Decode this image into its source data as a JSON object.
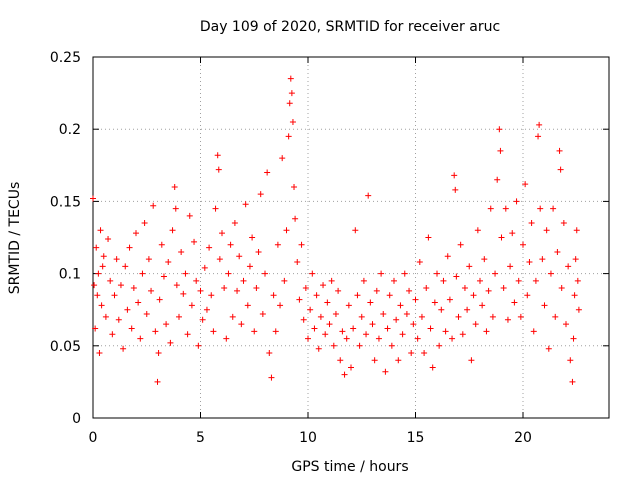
{
  "chart_data": {
    "type": "scatter",
    "title": "Day 109 of 2020, SRMTID for receiver aruc",
    "xlabel": "GPS time / hours",
    "ylabel": "SRMTID / TECUs",
    "xlim": [
      0,
      24
    ],
    "ylim": [
      0,
      0.25
    ],
    "xticks": [
      0,
      5,
      10,
      15,
      20
    ],
    "xtick_labels": [
      "0",
      "5",
      "10",
      "15",
      "20"
    ],
    "yticks": [
      0,
      0.05,
      0.1,
      0.15,
      0.2,
      0.25
    ],
    "ytick_labels": [
      "0",
      "0.05",
      "0.1",
      "0.15",
      "0.2",
      "0.25"
    ],
    "grid": true,
    "marker": "+",
    "color": "#ff0000",
    "series": [
      {
        "name": "SRMTID",
        "points": [
          [
            0.0,
            0.152
          ],
          [
            0.05,
            0.092
          ],
          [
            0.1,
            0.062
          ],
          [
            0.15,
            0.118
          ],
          [
            0.2,
            0.085
          ],
          [
            0.25,
            0.1
          ],
          [
            0.3,
            0.045
          ],
          [
            0.35,
            0.13
          ],
          [
            0.4,
            0.078
          ],
          [
            0.45,
            0.105
          ],
          [
            0.5,
            0.112
          ],
          [
            0.6,
            0.07
          ],
          [
            0.7,
            0.124
          ],
          [
            0.8,
            0.095
          ],
          [
            0.9,
            0.058
          ],
          [
            1.0,
            0.085
          ],
          [
            1.1,
            0.11
          ],
          [
            1.2,
            0.068
          ],
          [
            1.3,
            0.092
          ],
          [
            1.4,
            0.048
          ],
          [
            1.5,
            0.105
          ],
          [
            1.6,
            0.075
          ],
          [
            1.7,
            0.118
          ],
          [
            1.8,
            0.062
          ],
          [
            1.9,
            0.09
          ],
          [
            2.0,
            0.128
          ],
          [
            2.1,
            0.08
          ],
          [
            2.2,
            0.055
          ],
          [
            2.3,
            0.1
          ],
          [
            2.4,
            0.135
          ],
          [
            2.5,
            0.072
          ],
          [
            2.6,
            0.11
          ],
          [
            2.7,
            0.088
          ],
          [
            2.8,
            0.147
          ],
          [
            2.9,
            0.06
          ],
          [
            3.0,
            0.025
          ],
          [
            3.05,
            0.045
          ],
          [
            3.1,
            0.082
          ],
          [
            3.2,
            0.12
          ],
          [
            3.3,
            0.098
          ],
          [
            3.4,
            0.065
          ],
          [
            3.5,
            0.108
          ],
          [
            3.6,
            0.052
          ],
          [
            3.7,
            0.13
          ],
          [
            3.8,
            0.16
          ],
          [
            3.85,
            0.145
          ],
          [
            3.9,
            0.092
          ],
          [
            4.0,
            0.07
          ],
          [
            4.1,
            0.115
          ],
          [
            4.2,
            0.086
          ],
          [
            4.3,
            0.1
          ],
          [
            4.4,
            0.058
          ],
          [
            4.5,
            0.14
          ],
          [
            4.6,
            0.078
          ],
          [
            4.7,
            0.122
          ],
          [
            4.8,
            0.095
          ],
          [
            4.9,
            0.05
          ],
          [
            5.0,
            0.088
          ],
          [
            5.1,
            0.068
          ],
          [
            5.2,
            0.104
          ],
          [
            5.3,
            0.075
          ],
          [
            5.4,
            0.118
          ],
          [
            5.5,
            0.085
          ],
          [
            5.6,
            0.06
          ],
          [
            5.7,
            0.145
          ],
          [
            5.8,
            0.182
          ],
          [
            5.85,
            0.172
          ],
          [
            5.9,
            0.11
          ],
          [
            6.0,
            0.128
          ],
          [
            6.1,
            0.09
          ],
          [
            6.2,
            0.055
          ],
          [
            6.3,
            0.1
          ],
          [
            6.4,
            0.12
          ],
          [
            6.5,
            0.07
          ],
          [
            6.6,
            0.135
          ],
          [
            6.7,
            0.088
          ],
          [
            6.8,
            0.112
          ],
          [
            6.9,
            0.065
          ],
          [
            7.0,
            0.095
          ],
          [
            7.1,
            0.148
          ],
          [
            7.2,
            0.078
          ],
          [
            7.3,
            0.105
          ],
          [
            7.4,
            0.125
          ],
          [
            7.5,
            0.06
          ],
          [
            7.6,
            0.09
          ],
          [
            7.7,
            0.115
          ],
          [
            7.8,
            0.155
          ],
          [
            7.9,
            0.072
          ],
          [
            8.0,
            0.1
          ],
          [
            8.1,
            0.17
          ],
          [
            8.2,
            0.045
          ],
          [
            8.3,
            0.028
          ],
          [
            8.4,
            0.085
          ],
          [
            8.5,
            0.06
          ],
          [
            8.6,
            0.12
          ],
          [
            8.7,
            0.078
          ],
          [
            8.8,
            0.18
          ],
          [
            8.9,
            0.095
          ],
          [
            9.0,
            0.13
          ],
          [
            9.1,
            0.195
          ],
          [
            9.15,
            0.218
          ],
          [
            9.2,
            0.235
          ],
          [
            9.25,
            0.225
          ],
          [
            9.3,
            0.205
          ],
          [
            9.35,
            0.16
          ],
          [
            9.4,
            0.138
          ],
          [
            9.5,
            0.108
          ],
          [
            9.6,
            0.082
          ],
          [
            9.7,
            0.12
          ],
          [
            9.8,
            0.068
          ],
          [
            9.9,
            0.09
          ],
          [
            10.0,
            0.055
          ],
          [
            10.1,
            0.075
          ],
          [
            10.2,
            0.1
          ],
          [
            10.3,
            0.062
          ],
          [
            10.4,
            0.085
          ],
          [
            10.5,
            0.048
          ],
          [
            10.6,
            0.07
          ],
          [
            10.7,
            0.092
          ],
          [
            10.8,
            0.058
          ],
          [
            10.9,
            0.08
          ],
          [
            11.0,
            0.065
          ],
          [
            11.1,
            0.095
          ],
          [
            11.2,
            0.05
          ],
          [
            11.3,
            0.072
          ],
          [
            11.4,
            0.088
          ],
          [
            11.5,
            0.04
          ],
          [
            11.6,
            0.06
          ],
          [
            11.7,
            0.03
          ],
          [
            11.8,
            0.055
          ],
          [
            11.9,
            0.078
          ],
          [
            12.0,
            0.035
          ],
          [
            12.1,
            0.062
          ],
          [
            12.2,
            0.13
          ],
          [
            12.3,
            0.085
          ],
          [
            12.4,
            0.05
          ],
          [
            12.5,
            0.07
          ],
          [
            12.6,
            0.095
          ],
          [
            12.7,
            0.058
          ],
          [
            12.8,
            0.154
          ],
          [
            12.9,
            0.08
          ],
          [
            13.0,
            0.065
          ],
          [
            13.1,
            0.04
          ],
          [
            13.2,
            0.088
          ],
          [
            13.3,
            0.055
          ],
          [
            13.4,
            0.1
          ],
          [
            13.5,
            0.072
          ],
          [
            13.6,
            0.032
          ],
          [
            13.7,
            0.062
          ],
          [
            13.8,
            0.085
          ],
          [
            13.9,
            0.05
          ],
          [
            14.0,
            0.095
          ],
          [
            14.1,
            0.068
          ],
          [
            14.2,
            0.04
          ],
          [
            14.3,
            0.078
          ],
          [
            14.4,
            0.058
          ],
          [
            14.5,
            0.1
          ],
          [
            14.6,
            0.072
          ],
          [
            14.7,
            0.088
          ],
          [
            14.8,
            0.045
          ],
          [
            14.9,
            0.065
          ],
          [
            15.0,
            0.082
          ],
          [
            15.1,
            0.055
          ],
          [
            15.2,
            0.108
          ],
          [
            15.3,
            0.07
          ],
          [
            15.4,
            0.045
          ],
          [
            15.5,
            0.09
          ],
          [
            15.6,
            0.125
          ],
          [
            15.7,
            0.062
          ],
          [
            15.8,
            0.035
          ],
          [
            15.9,
            0.08
          ],
          [
            16.0,
            0.1
          ],
          [
            16.1,
            0.05
          ],
          [
            16.2,
            0.075
          ],
          [
            16.3,
            0.095
          ],
          [
            16.4,
            0.06
          ],
          [
            16.5,
            0.112
          ],
          [
            16.6,
            0.082
          ],
          [
            16.7,
            0.055
          ],
          [
            16.8,
            0.168
          ],
          [
            16.85,
            0.158
          ],
          [
            16.9,
            0.098
          ],
          [
            17.0,
            0.07
          ],
          [
            17.1,
            0.12
          ],
          [
            17.2,
            0.058
          ],
          [
            17.3,
            0.09
          ],
          [
            17.4,
            0.075
          ],
          [
            17.5,
            0.105
          ],
          [
            17.6,
            0.04
          ],
          [
            17.7,
            0.085
          ],
          [
            17.8,
            0.065
          ],
          [
            17.9,
            0.13
          ],
          [
            18.0,
            0.095
          ],
          [
            18.1,
            0.078
          ],
          [
            18.2,
            0.11
          ],
          [
            18.3,
            0.06
          ],
          [
            18.4,
            0.088
          ],
          [
            18.5,
            0.145
          ],
          [
            18.6,
            0.07
          ],
          [
            18.7,
            0.1
          ],
          [
            18.8,
            0.165
          ],
          [
            18.9,
            0.2
          ],
          [
            18.95,
            0.185
          ],
          [
            19.0,
            0.125
          ],
          [
            19.1,
            0.09
          ],
          [
            19.2,
            0.145
          ],
          [
            19.3,
            0.068
          ],
          [
            19.4,
            0.105
          ],
          [
            19.5,
            0.128
          ],
          [
            19.6,
            0.08
          ],
          [
            19.7,
            0.15
          ],
          [
            19.8,
            0.095
          ],
          [
            19.9,
            0.07
          ],
          [
            20.0,
            0.12
          ],
          [
            20.1,
            0.162
          ],
          [
            20.2,
            0.085
          ],
          [
            20.3,
            0.108
          ],
          [
            20.4,
            0.135
          ],
          [
            20.5,
            0.06
          ],
          [
            20.6,
            0.095
          ],
          [
            20.7,
            0.195
          ],
          [
            20.75,
            0.203
          ],
          [
            20.8,
            0.145
          ],
          [
            20.9,
            0.11
          ],
          [
            21.0,
            0.078
          ],
          [
            21.1,
            0.13
          ],
          [
            21.2,
            0.048
          ],
          [
            21.3,
            0.1
          ],
          [
            21.4,
            0.145
          ],
          [
            21.5,
            0.07
          ],
          [
            21.6,
            0.115
          ],
          [
            21.7,
            0.185
          ],
          [
            21.75,
            0.172
          ],
          [
            21.8,
            0.09
          ],
          [
            21.9,
            0.135
          ],
          [
            22.0,
            0.065
          ],
          [
            22.1,
            0.105
          ],
          [
            22.2,
            0.04
          ],
          [
            22.3,
            0.025
          ],
          [
            22.35,
            0.055
          ],
          [
            22.4,
            0.085
          ],
          [
            22.45,
            0.11
          ],
          [
            22.5,
            0.13
          ],
          [
            22.55,
            0.095
          ],
          [
            22.6,
            0.075
          ]
        ]
      }
    ]
  }
}
